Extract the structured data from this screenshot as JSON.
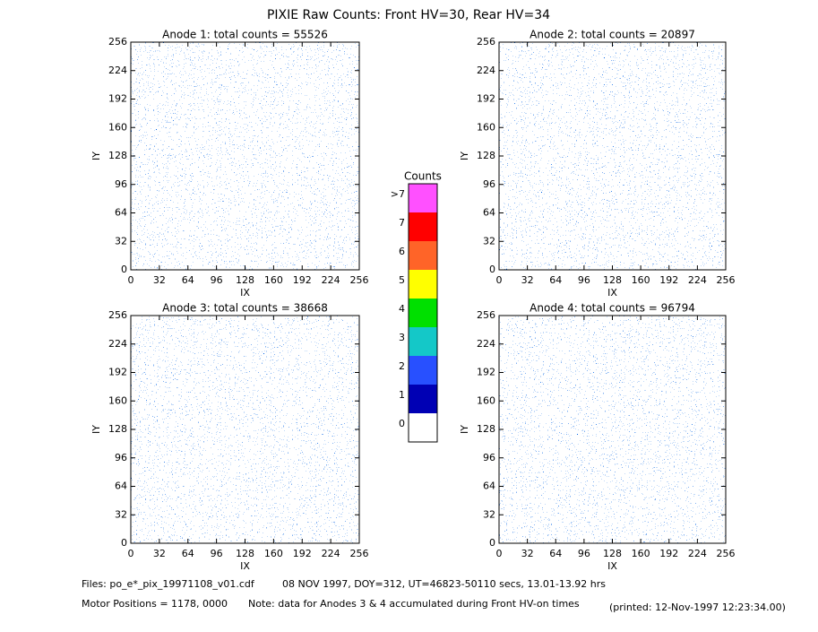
{
  "title": "PIXIE Raw Counts:  Front HV=30, Rear HV=34",
  "chart_data": [
    {
      "type": "heatmap",
      "title": "Anode 1: total counts = 55526",
      "x_label": "IX",
      "y_label": "IY",
      "xlim": [
        0,
        256
      ],
      "ylim": [
        0,
        256
      ],
      "xticks": [
        0,
        32,
        64,
        96,
        128,
        160,
        192,
        224,
        256
      ],
      "yticks": [
        0,
        32,
        64,
        96,
        128,
        160,
        192,
        224,
        256
      ]
    },
    {
      "type": "heatmap",
      "title": "Anode 2: total counts = 20897",
      "x_label": "IX",
      "y_label": "IY",
      "xlim": [
        0,
        256
      ],
      "ylim": [
        0,
        256
      ],
      "xticks": [
        0,
        32,
        64,
        96,
        128,
        160,
        192,
        224,
        256
      ],
      "yticks": [
        0,
        32,
        64,
        96,
        128,
        160,
        192,
        224,
        256
      ]
    },
    {
      "type": "heatmap",
      "title": "Anode 3: total counts = 38668",
      "x_label": "IX",
      "y_label": "IY",
      "xlim": [
        0,
        256
      ],
      "ylim": [
        0,
        256
      ],
      "xticks": [
        0,
        32,
        64,
        96,
        128,
        160,
        192,
        224,
        256
      ],
      "yticks": [
        0,
        32,
        64,
        96,
        128,
        160,
        192,
        224,
        256
      ]
    },
    {
      "type": "heatmap",
      "title": "Anode 4: total counts = 96794",
      "x_label": "IX",
      "y_label": "IY",
      "xlim": [
        0,
        256
      ],
      "ylim": [
        0,
        256
      ],
      "xticks": [
        0,
        32,
        64,
        96,
        128,
        160,
        192,
        224,
        256
      ],
      "yticks": [
        0,
        32,
        64,
        96,
        128,
        160,
        192,
        224,
        256
      ]
    }
  ],
  "colorbar": {
    "title": "Counts",
    "labels": [
      "0",
      "1",
      "2",
      "3",
      "4",
      "5",
      "6",
      "7",
      ">7"
    ],
    "colors": [
      "#ffffff",
      "#0000b4",
      "#2850ff",
      "#14c8c8",
      "#00e000",
      "#ffff00",
      "#ff6428",
      "#ff0000",
      "#ff50ff"
    ]
  },
  "footer": {
    "files": "Files: po_e*_pix_19971108_v01.cdf",
    "date_info": "08 NOV 1997, DOY=312, UT=46823-50110 secs, 13.01-13.92 hrs",
    "motor": "Motor Positions = 1178, 0000",
    "note": "Note: data for Anodes 3 & 4 accumulated during Front HV-on times",
    "printed": "(printed: 12-Nov-1997 12:23:34.00)"
  }
}
